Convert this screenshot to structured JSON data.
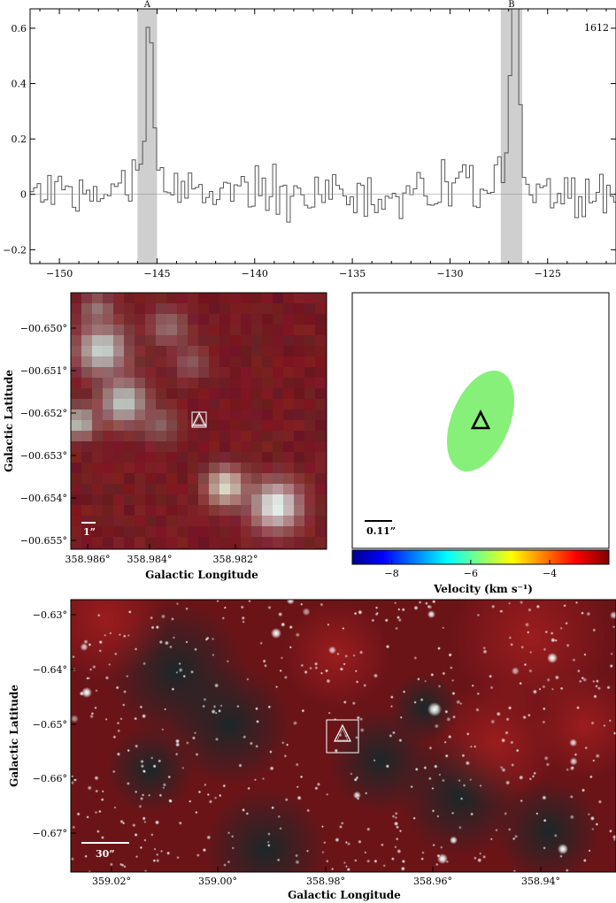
{
  "chart_data": [
    {
      "type": "line",
      "panel": "spectrum",
      "label": "1612",
      "xlim": [
        -151.5,
        -121.5
      ],
      "ylim": [
        -0.25,
        0.67
      ],
      "xticks": [
        -150,
        -145,
        -140,
        -135,
        -130,
        -125
      ],
      "yticks": [
        -0.2,
        0,
        0.2,
        0.4,
        0.6
      ],
      "ytick_labels": [
        "−0.2",
        "0",
        "0.2",
        "0.4",
        "0.6"
      ],
      "xtick_labels": [
        "−150",
        "−145",
        "−140",
        "−135",
        "−130",
        "−125"
      ],
      "highlight_regions": [
        {
          "label": "A",
          "range": [
            -146.0,
            -145.0
          ]
        },
        {
          "label": "B",
          "range": [
            -127.4,
            -126.3
          ]
        }
      ],
      "peaks": [
        {
          "label": "A",
          "center": -145.5,
          "amplitude": 0.55
        },
        {
          "label": "B",
          "center": -126.8,
          "amplitude": 0.63
        }
      ],
      "noise_rms": 0.08,
      "channel_width": 0.18,
      "line_color": "#555555",
      "region_color": "#cfcfcf"
    },
    {
      "type": "image",
      "panel": "zoom-infrared",
      "xlabel": "Galactic Longitude",
      "ylabel": "Galactic Latitude",
      "xticks": [
        "358.986°",
        "358.984°",
        "358.982°"
      ],
      "yticks": [
        "−00.650°",
        "−00.651°",
        "−00.652°",
        "−00.653°",
        "−00.654°",
        "−00.655°"
      ],
      "scale_bar": "1”",
      "marker": "triangle"
    },
    {
      "type": "image",
      "panel": "velocity-map",
      "colorbar_label": "Velocity (km s⁻¹)",
      "colorbar_ticks": [
        "−8",
        "−6",
        "−4"
      ],
      "colorbar_range": [
        -9.0,
        -2.5
      ],
      "ellipse_color": "#86f079",
      "scale_bar": "0.11”",
      "marker": "triangle"
    },
    {
      "type": "image",
      "panel": "wide-field",
      "xlabel": "Galactic Longitude",
      "ylabel": "Galactic Latitude",
      "xticks": [
        "359.02°",
        "359.00°",
        "358.98°",
        "358.96°",
        "358.94°"
      ],
      "yticks": [
        "−0.63°",
        "−0.64°",
        "−0.65°",
        "−0.66°",
        "−0.67°"
      ],
      "scale_bar": "30”",
      "marker": "triangle"
    }
  ]
}
